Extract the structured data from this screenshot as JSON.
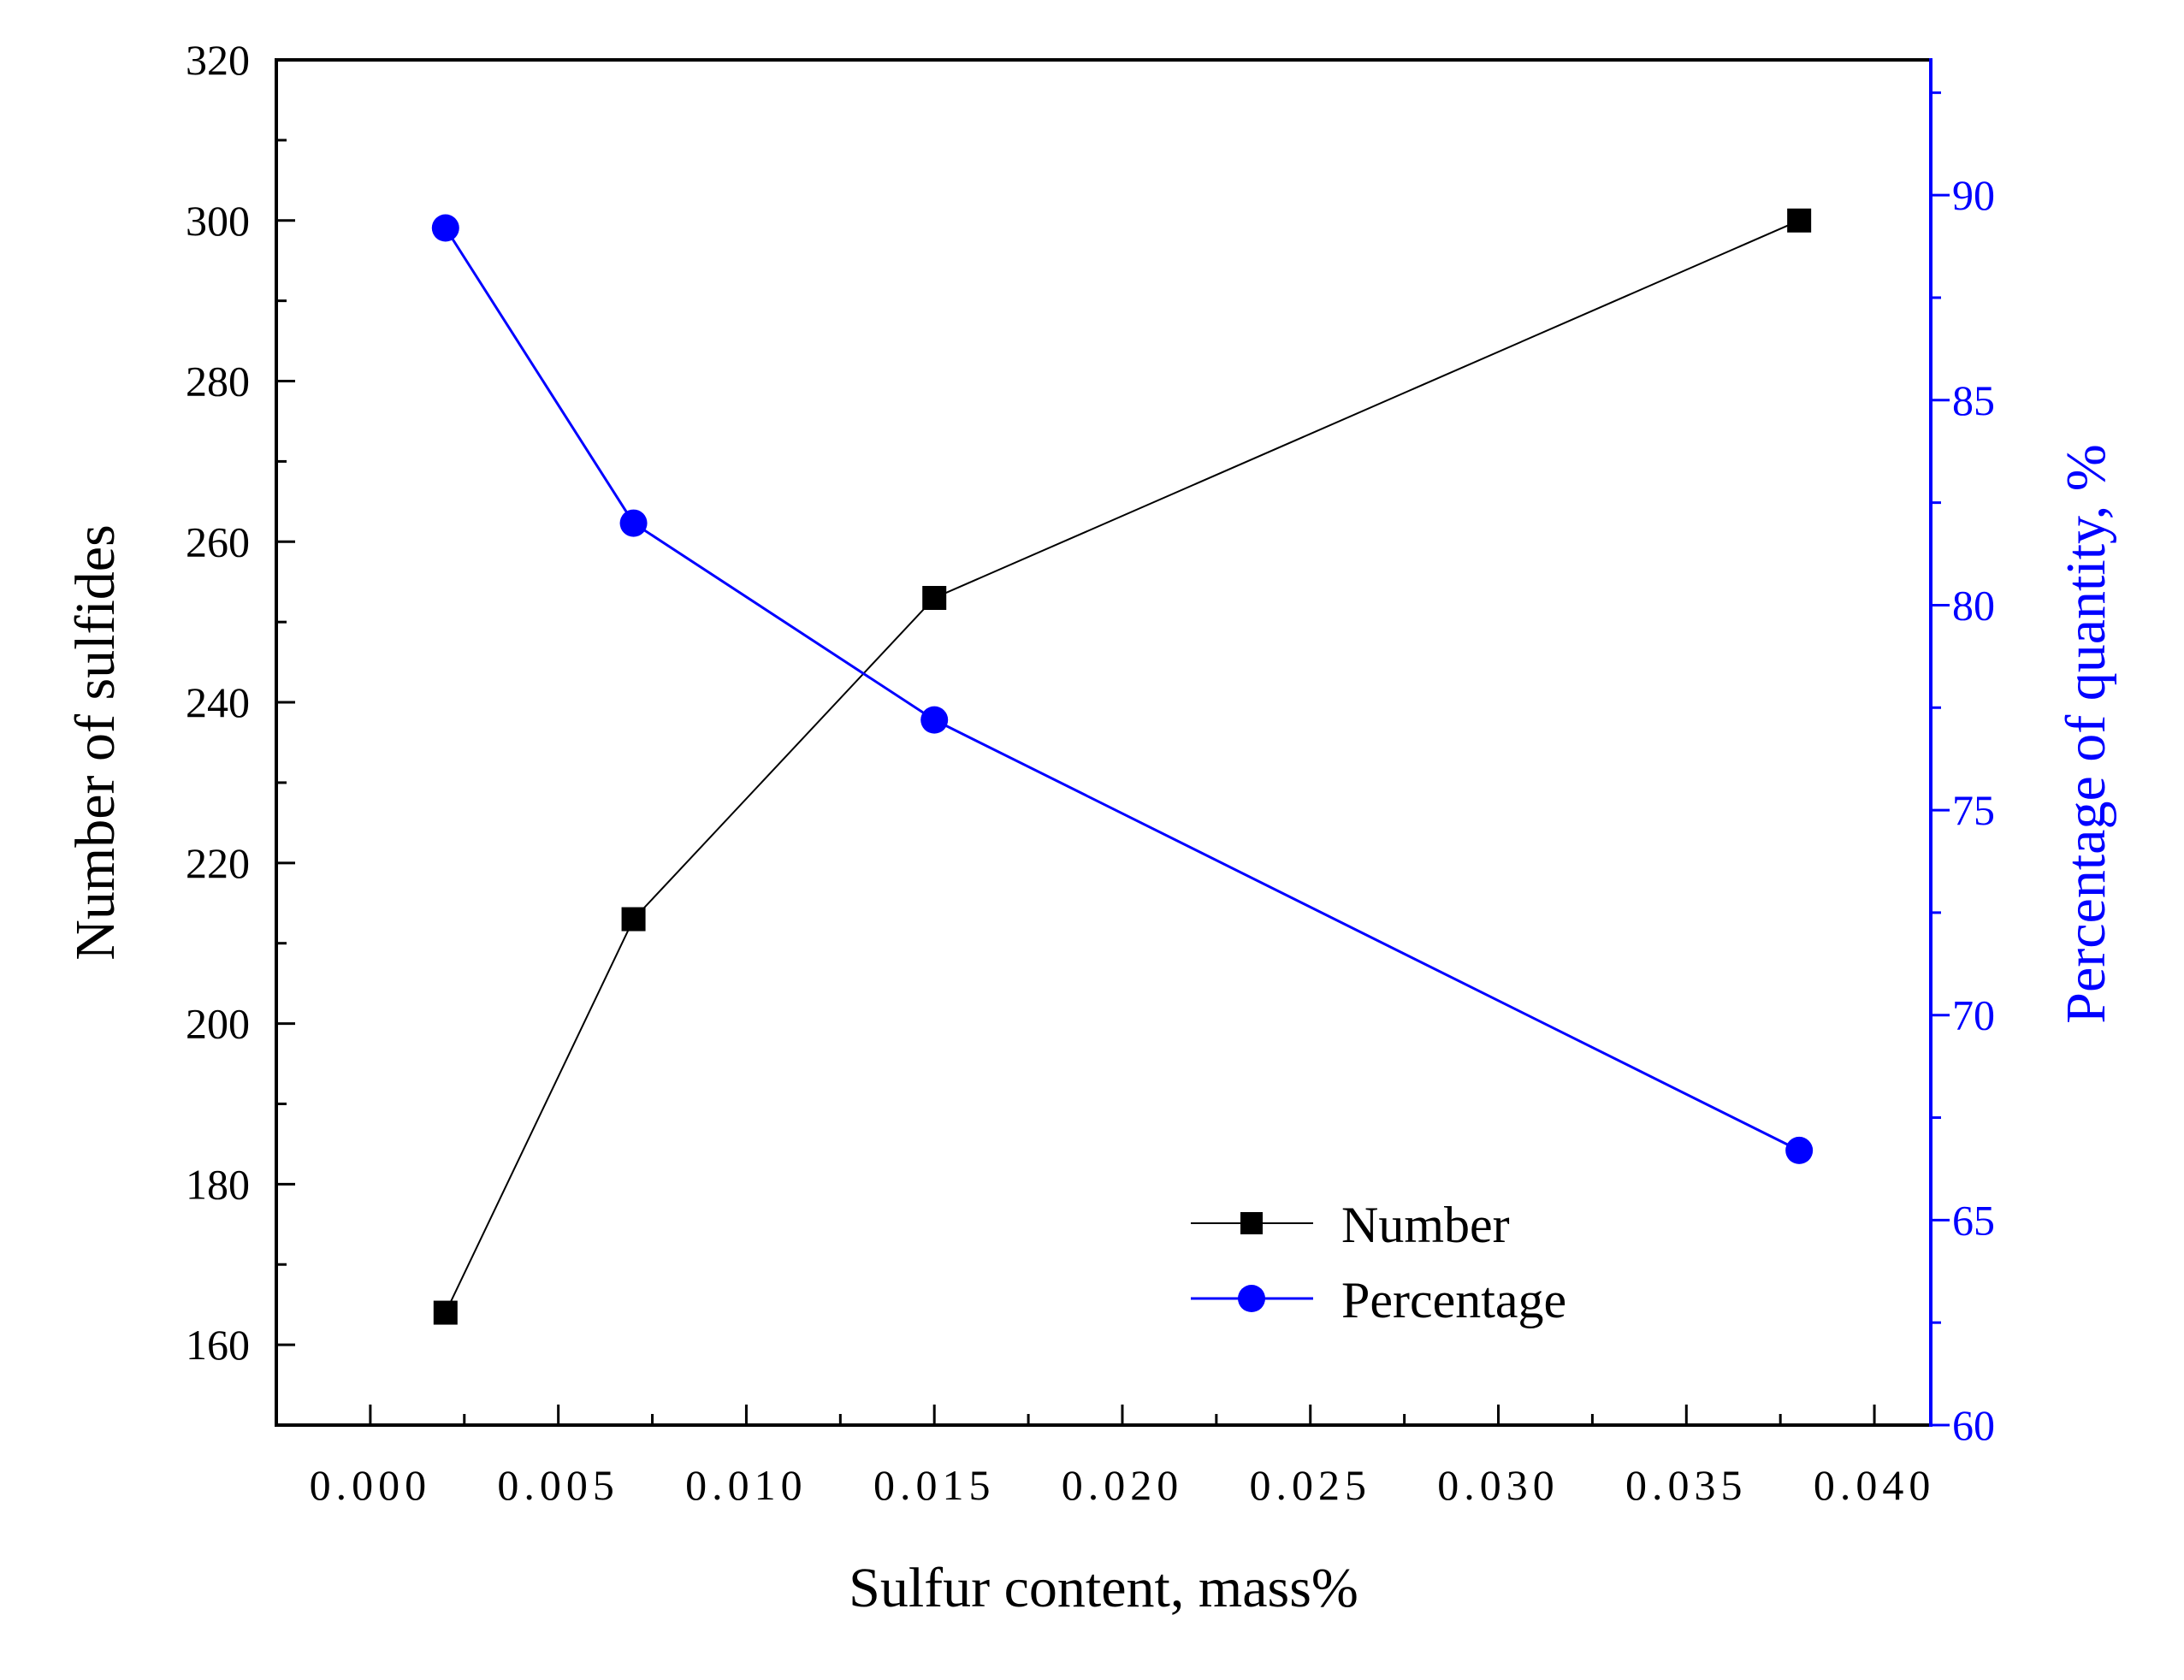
{
  "chart_data": {
    "type": "line",
    "title": "",
    "xlabel": "Sulfur content, mass%",
    "ylabel_left": "Number of sulfides",
    "ylabel_right": "Percentage of quantity, %",
    "xlim": [
      -0.0025,
      0.0415
    ],
    "ylim_left": [
      150,
      320
    ],
    "ylim_right": [
      60,
      93.3
    ],
    "x_ticks": [
      0.0,
      0.005,
      0.01,
      0.015,
      0.02,
      0.025,
      0.03,
      0.035,
      0.04
    ],
    "x_tick_labels": [
      "0.000",
      "0.005",
      "0.010",
      "0.015",
      "0.020",
      "0.025",
      "0.030",
      "0.035",
      "0.040"
    ],
    "y_left_ticks": [
      160,
      180,
      200,
      220,
      240,
      260,
      280,
      300,
      320
    ],
    "y_left_tick_labels": [
      "160",
      "180",
      "200",
      "220",
      "240",
      "260",
      "280",
      "300",
      "320"
    ],
    "y_right_ticks": [
      60,
      65,
      70,
      75,
      80,
      85,
      90
    ],
    "y_right_tick_labels": [
      "60",
      "65",
      "70",
      "75",
      "80",
      "85",
      "90"
    ],
    "grid": false,
    "legend_position": "bottom-right",
    "series": [
      {
        "name": "Number",
        "axis": "left",
        "marker": "square",
        "color": "#000000",
        "x": [
          0.002,
          0.007,
          0.015,
          0.038
        ],
        "values": [
          164,
          213,
          253,
          300
        ]
      },
      {
        "name": "Percentage",
        "axis": "right",
        "marker": "circle",
        "color": "#0000ff",
        "x": [
          0.002,
          0.007,
          0.015,
          0.038
        ],
        "values": [
          89.2,
          82.0,
          77.2,
          66.7
        ]
      }
    ]
  }
}
